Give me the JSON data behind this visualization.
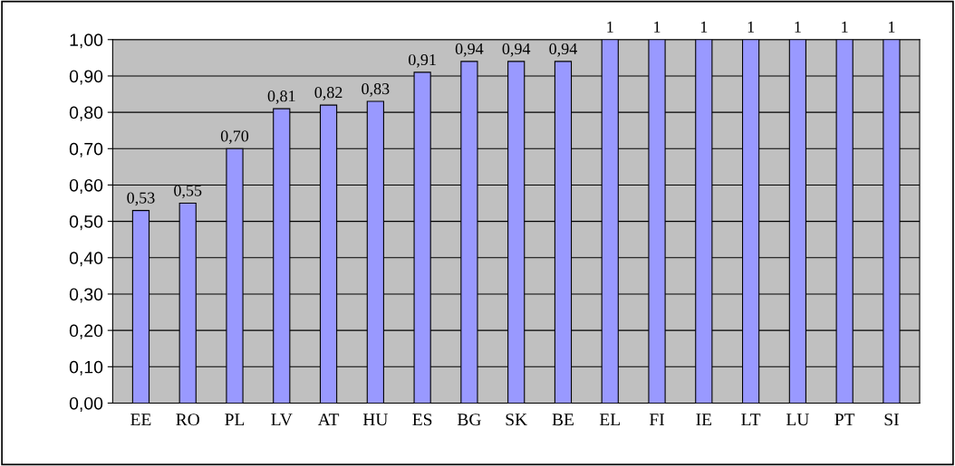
{
  "chart_data": {
    "type": "bar",
    "categories": [
      "EE",
      "RO",
      "PL",
      "LV",
      "AT",
      "HU",
      "ES",
      "BG",
      "SK",
      "BE",
      "EL",
      "FI",
      "IE",
      "LT",
      "LU",
      "PT",
      "SI"
    ],
    "values": [
      0.53,
      0.55,
      0.7,
      0.81,
      0.82,
      0.83,
      0.91,
      0.94,
      0.94,
      0.94,
      1,
      1,
      1,
      1,
      1,
      1,
      1
    ],
    "value_labels": [
      "0,53",
      "0,55",
      "0,70",
      "0,81",
      "0,82",
      "0,83",
      "0,91",
      "0,94",
      "0,94",
      "0,94",
      "1",
      "1",
      "1",
      "1",
      "1",
      "1",
      "1"
    ],
    "color": "#9999ff",
    "ylim": [
      0,
      1
    ],
    "yticks": [
      {
        "value": 0,
        "label": "0,00"
      },
      {
        "value": 0.1,
        "label": "0,10"
      },
      {
        "value": 0.2,
        "label": "0,20"
      },
      {
        "value": 0.3,
        "label": "0,30"
      },
      {
        "value": 0.4,
        "label": "0,40"
      },
      {
        "value": 0.5,
        "label": "0,50"
      },
      {
        "value": 0.6,
        "label": "0,60"
      },
      {
        "value": 0.7,
        "label": "0,70"
      },
      {
        "value": 0.8,
        "label": "0,80"
      },
      {
        "value": 0.9,
        "label": "0,90"
      },
      {
        "value": 1,
        "label": "1,00"
      }
    ],
    "grid": "y"
  }
}
